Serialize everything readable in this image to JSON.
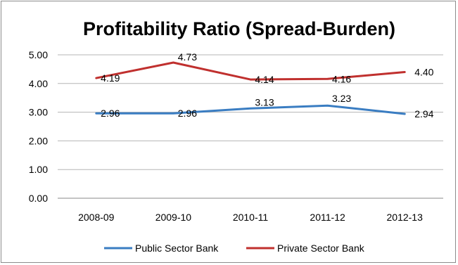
{
  "chart_data": {
    "type": "line",
    "title": "Profitability Ratio (Spread-Burden)",
    "categories": [
      "2008-09",
      "2009-10",
      "2010-11",
      "2011-12",
      "2012-13"
    ],
    "ylim": [
      0,
      5
    ],
    "yticks": [
      "0.00",
      "1.00",
      "2.00",
      "3.00",
      "4.00",
      "5.00"
    ],
    "grid": true,
    "legend_position": "bottom",
    "series": [
      {
        "name": "Public Sector Bank",
        "values": [
          2.96,
          2.96,
          3.13,
          3.23,
          2.94
        ],
        "labels": [
          "2.96",
          "2.96",
          "3.13",
          "3.23",
          "2.94"
        ],
        "color": "#3a7dc2"
      },
      {
        "name": "Private Sector Bank",
        "values": [
          4.19,
          4.73,
          4.14,
          4.16,
          4.4
        ],
        "labels": [
          "4.19",
          "4.73",
          "4.14",
          "4.16",
          "4.40"
        ],
        "color": "#c0302e"
      }
    ]
  }
}
